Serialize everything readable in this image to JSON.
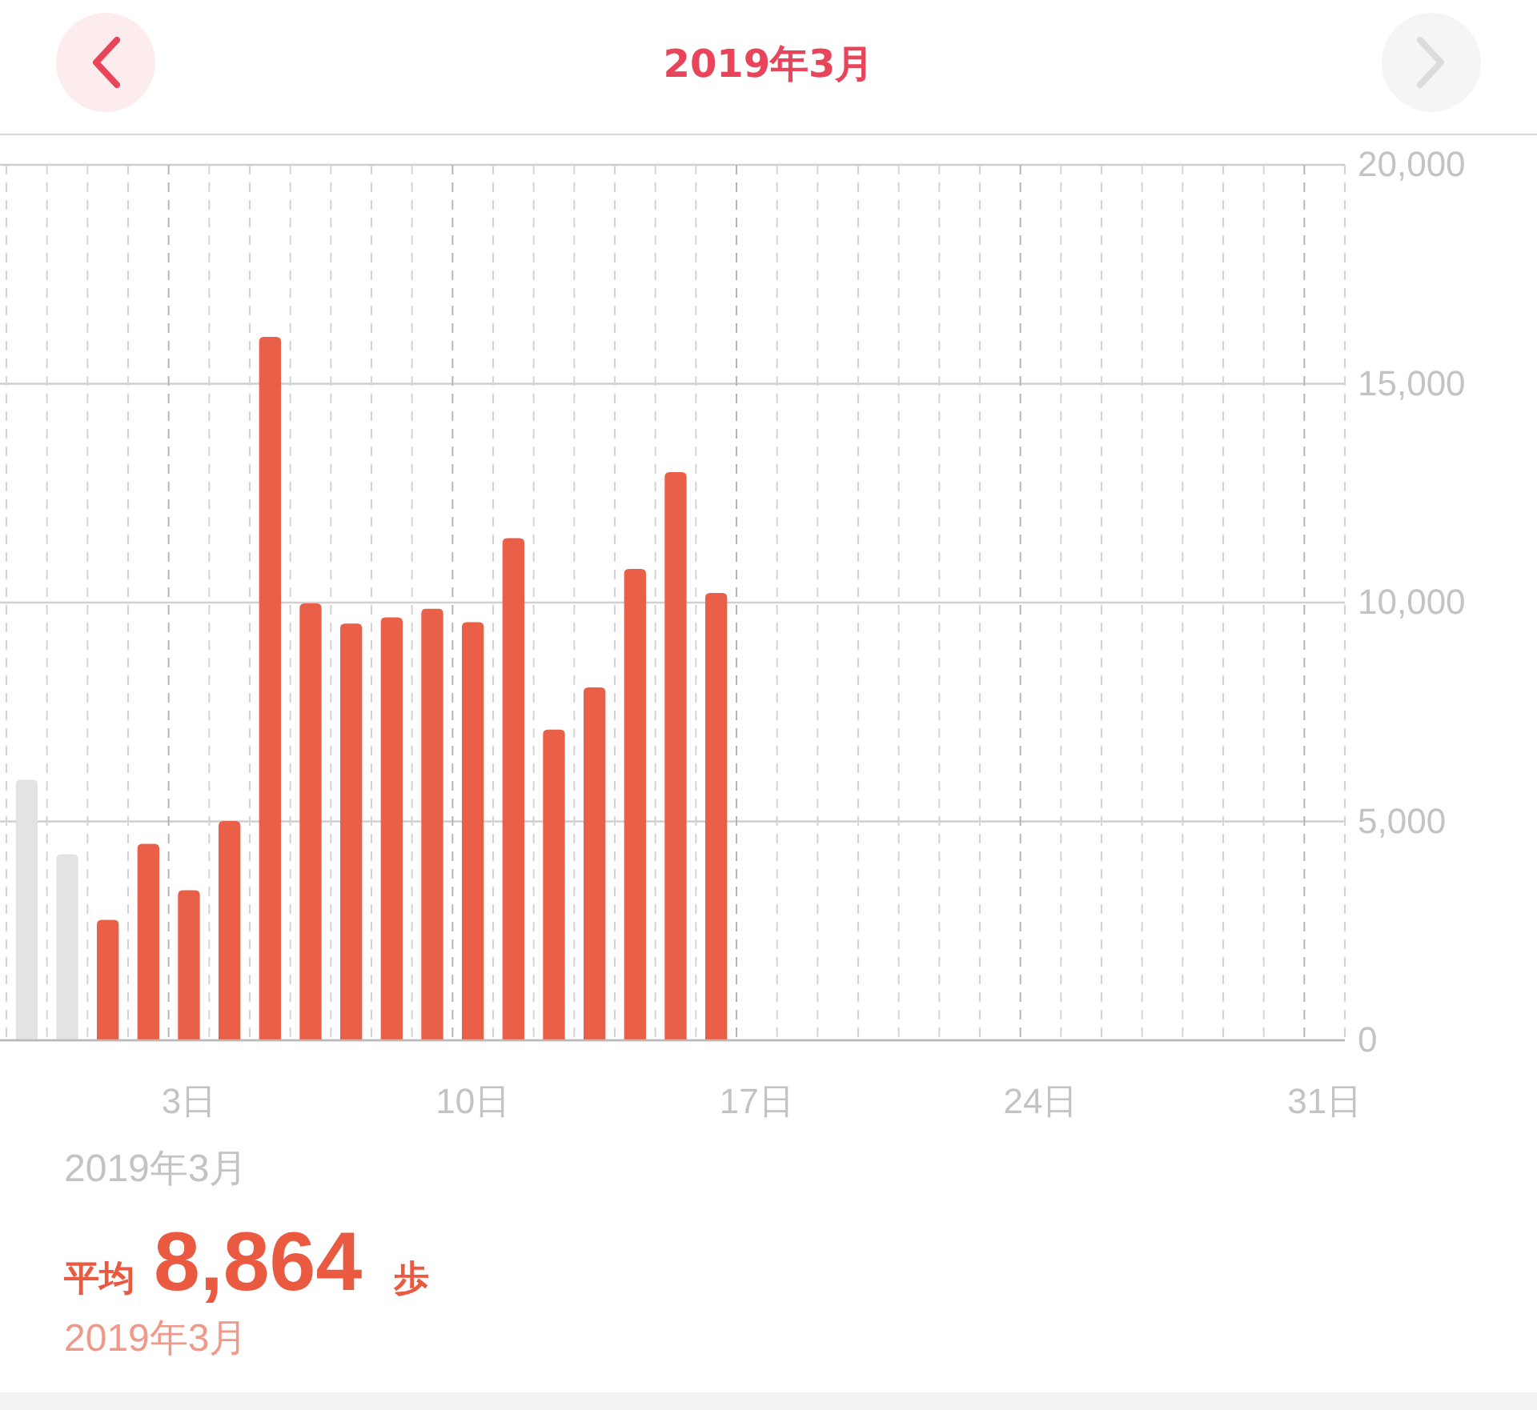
{
  "chart_data": {
    "type": "bar",
    "title": "2019年3月",
    "categories": [
      null,
      null,
      null,
      null,
      "3日",
      null,
      null,
      null,
      null,
      null,
      null,
      "10日",
      null,
      null,
      null,
      null,
      null,
      null,
      "17日",
      null,
      null,
      null,
      null,
      null,
      null,
      "24日",
      null,
      null,
      null,
      null,
      null,
      null,
      "31日"
    ],
    "series": [
      {
        "color": "#e3e3e3",
        "values": [
          5950,
          4250,
          null,
          null,
          null,
          null,
          null,
          null,
          null,
          null,
          null,
          null,
          null,
          null,
          null,
          null,
          null,
          null,
          null,
          null,
          null,
          null,
          null,
          null,
          null,
          null,
          null,
          null,
          null,
          null,
          null,
          null,
          null
        ]
      },
      {
        "color": "#ea5f47",
        "values": [
          null,
          null,
          2750,
          4490,
          3430,
          5010,
          16070,
          9980,
          9520,
          9660,
          9860,
          9550,
          11470,
          7100,
          8060,
          10770,
          12980,
          10220,
          null,
          null,
          null,
          null,
          null,
          null,
          null,
          null,
          null,
          null,
          null,
          null,
          null,
          null,
          null
        ]
      }
    ],
    "ylim": [
      0,
      20000
    ],
    "yticks": [
      0,
      {
        "value": 5000,
        "label": "5,000"
      },
      {
        "value": 10000,
        "label": "10,000"
      },
      {
        "value": 15000,
        "label": "15,000"
      },
      {
        "value": 20000,
        "label": "20,000"
      }
    ],
    "grid": true,
    "annotations": [
      "2019年3月",
      "平均",
      "8,864",
      "歩",
      "2019年3月"
    ]
  }
}
